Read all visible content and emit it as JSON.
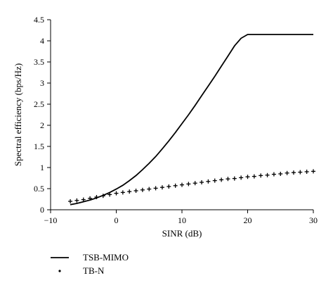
{
  "chart_data": {
    "type": "line",
    "xlabel": "SINR (dB)",
    "ylabel": "Spectral efficiency (bps/Hz)",
    "xlim": [
      -10,
      30
    ],
    "ylim": [
      0,
      4.5
    ],
    "xticks": [
      -10,
      0,
      10,
      20,
      30
    ],
    "yticks": [
      0,
      0.5,
      1,
      1.5,
      2,
      2.5,
      3,
      3.5,
      4,
      4.5
    ],
    "xtick_labels": [
      "−10",
      "0",
      "10",
      "20",
      "30"
    ],
    "ytick_labels": [
      "0",
      "0.5",
      "1",
      "1.5",
      "2",
      "2.5",
      "3",
      "3.5",
      "4",
      "4.5"
    ],
    "grid": false,
    "legend_position": "bottom-left",
    "series": [
      {
        "name": "TSB-MIMO",
        "style": "line",
        "x": [
          -7,
          -6,
          -5,
          -4,
          -3,
          -2,
          -1,
          0,
          1,
          2,
          3,
          4,
          5,
          6,
          7,
          8,
          9,
          10,
          11,
          12,
          13,
          14,
          15,
          16,
          17,
          18,
          19,
          20,
          21,
          22,
          23,
          24,
          25,
          26,
          27,
          28,
          29,
          30
        ],
        "y": [
          0.12,
          0.15,
          0.19,
          0.23,
          0.28,
          0.34,
          0.41,
          0.49,
          0.58,
          0.69,
          0.81,
          0.95,
          1.1,
          1.26,
          1.44,
          1.63,
          1.83,
          2.04,
          2.25,
          2.47,
          2.7,
          2.93,
          3.16,
          3.4,
          3.64,
          3.88,
          4.06,
          4.15,
          4.15,
          4.15,
          4.15,
          4.15,
          4.15,
          4.15,
          4.15,
          4.15,
          4.15,
          4.15
        ]
      },
      {
        "name": "TB-N",
        "style": "markers",
        "x": [
          -7,
          -6,
          -5,
          -4,
          -3,
          -2,
          -1,
          0,
          1,
          2,
          3,
          4,
          5,
          6,
          7,
          8,
          9,
          10,
          11,
          12,
          13,
          14,
          15,
          16,
          17,
          18,
          19,
          20,
          21,
          22,
          23,
          24,
          25,
          26,
          27,
          28,
          29,
          30
        ],
        "y": [
          0.2,
          0.22,
          0.24,
          0.27,
          0.3,
          0.33,
          0.36,
          0.39,
          0.41,
          0.43,
          0.45,
          0.47,
          0.49,
          0.51,
          0.53,
          0.55,
          0.57,
          0.59,
          0.61,
          0.63,
          0.65,
          0.67,
          0.69,
          0.71,
          0.73,
          0.74,
          0.76,
          0.78,
          0.79,
          0.81,
          0.82,
          0.84,
          0.85,
          0.87,
          0.88,
          0.89,
          0.9,
          0.91
        ]
      }
    ]
  }
}
